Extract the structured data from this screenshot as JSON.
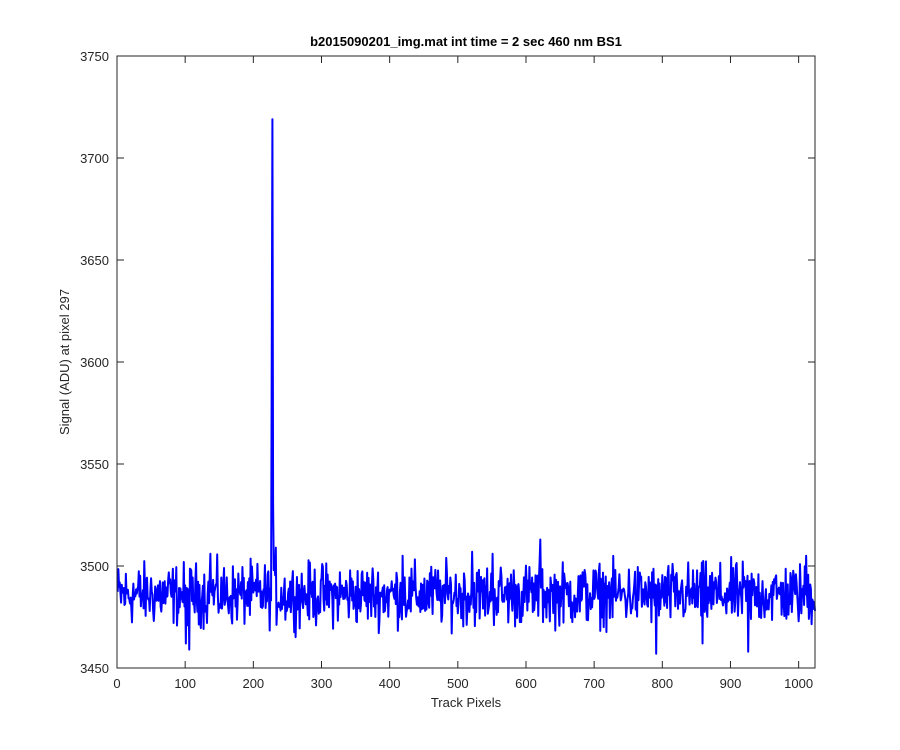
{
  "chart_data": {
    "type": "line",
    "title": "b2015090201_img.mat int time = 2 sec  460 nm BS1",
    "xlabel": "Track Pixels",
    "ylabel": "Signal (ADU) at pixel 297",
    "xlim": [
      0,
      1024
    ],
    "ylim": [
      3450,
      3750
    ],
    "xticks": [
      0,
      100,
      200,
      300,
      400,
      500,
      600,
      700,
      800,
      900,
      1000
    ],
    "yticks": [
      3450,
      3500,
      3550,
      3600,
      3650,
      3700,
      3750
    ],
    "grid": false,
    "series": [
      {
        "color": "#0000ff",
        "noise": {
          "count": 1024,
          "mean": 3486,
          "amplitude": 11
        },
        "features": [
          {
            "x": 224,
            "y": 3489
          },
          {
            "x": 226,
            "y": 3600
          },
          {
            "x": 227,
            "y": 3719
          },
          {
            "x": 228,
            "y": 3530
          },
          {
            "x": 229,
            "y": 3498
          },
          {
            "x": 100,
            "y": 3462
          },
          {
            "x": 105,
            "y": 3459
          },
          {
            "x": 136,
            "y": 3506
          },
          {
            "x": 232,
            "y": 3509
          },
          {
            "x": 418,
            "y": 3505
          },
          {
            "x": 520,
            "y": 3507
          },
          {
            "x": 550,
            "y": 3506
          },
          {
            "x": 620,
            "y": 3513
          },
          {
            "x": 790,
            "y": 3457
          },
          {
            "x": 858,
            "y": 3462
          },
          {
            "x": 925,
            "y": 3458
          },
          {
            "x": 1010,
            "y": 3505
          }
        ]
      }
    ]
  }
}
